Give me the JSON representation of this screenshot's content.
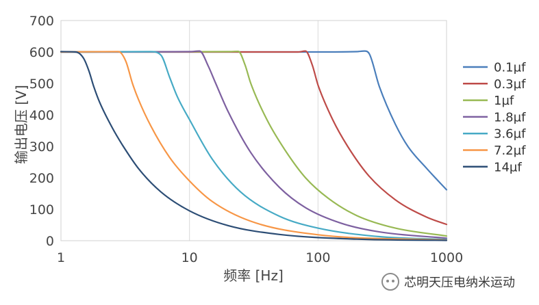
{
  "chart_data": {
    "type": "line",
    "xlabel": "频率 [Hz]",
    "ylabel": "输出电压 [V]",
    "xscale": "log",
    "xlim": [
      1,
      1000
    ],
    "ylim": [
      0,
      700
    ],
    "xticks": [
      "1",
      "10",
      "100",
      "1000"
    ],
    "yticks": [
      "0",
      "100",
      "200",
      "300",
      "400",
      "500",
      "600",
      "700"
    ],
    "grid": "vertical",
    "legend_position": "right",
    "series": [
      {
        "name": "0.1µf",
        "color": "#4a7ebb",
        "x": [
          1,
          100,
          200,
          230,
          250,
          300,
          400,
          500,
          700,
          1000
        ],
        "y": [
          600,
          600,
          601,
          603,
          595,
          490,
          370,
          300,
          230,
          162
        ]
      },
      {
        "name": "0.3µf",
        "color": "#be4b48",
        "x": [
          1,
          70,
          80,
          90,
          100,
          130,
          170,
          250,
          400,
          700,
          1000
        ],
        "y": [
          600,
          600,
          603,
          560,
          495,
          385,
          300,
          205,
          130,
          75,
          52
        ]
      },
      {
        "name": "1µf",
        "color": "#98b954",
        "x": [
          1,
          20,
          24,
          27,
          30,
          40,
          55,
          80,
          120,
          200,
          400,
          1000
        ],
        "y": [
          600,
          601,
          602,
          560,
          500,
          385,
          290,
          200,
          135,
          80,
          40,
          15
        ]
      },
      {
        "name": "1.8µf",
        "color": "#7d60a0",
        "x": [
          1,
          10,
          12,
          14,
          16,
          20,
          30,
          50,
          80,
          150,
          300,
          1000
        ],
        "y": [
          600,
          601,
          603,
          555,
          500,
          410,
          280,
          170,
          105,
          56,
          28,
          8
        ]
      },
      {
        "name": "3.6µf",
        "color": "#46aac5",
        "x": [
          1,
          5,
          6,
          7,
          8,
          10,
          15,
          25,
          50,
          100,
          300,
          1000
        ],
        "y": [
          600,
          601,
          590,
          520,
          460,
          385,
          260,
          155,
          78,
          40,
          13,
          4
        ]
      },
      {
        "name": "7.2µf",
        "color": "#f79646",
        "x": [
          1,
          2.8,
          3.2,
          3.6,
          4,
          5,
          7,
          10,
          15,
          30,
          100,
          1000
        ],
        "y": [
          600,
          601,
          570,
          500,
          450,
          365,
          265,
          190,
          125,
          62,
          19,
          2
        ]
      },
      {
        "name": "14µf",
        "color": "#2c4d75",
        "x": [
          1,
          1.3,
          1.5,
          1.65,
          1.8,
          2,
          2.5,
          3,
          4,
          6,
          10,
          20,
          50,
          200,
          1000
        ],
        "y": [
          601,
          600,
          580,
          540,
          490,
          440,
          360,
          305,
          230,
          155,
          95,
          48,
          20,
          5,
          1
        ]
      }
    ]
  },
  "watermark": {
    "text": "芯明天压电纳米运动"
  }
}
